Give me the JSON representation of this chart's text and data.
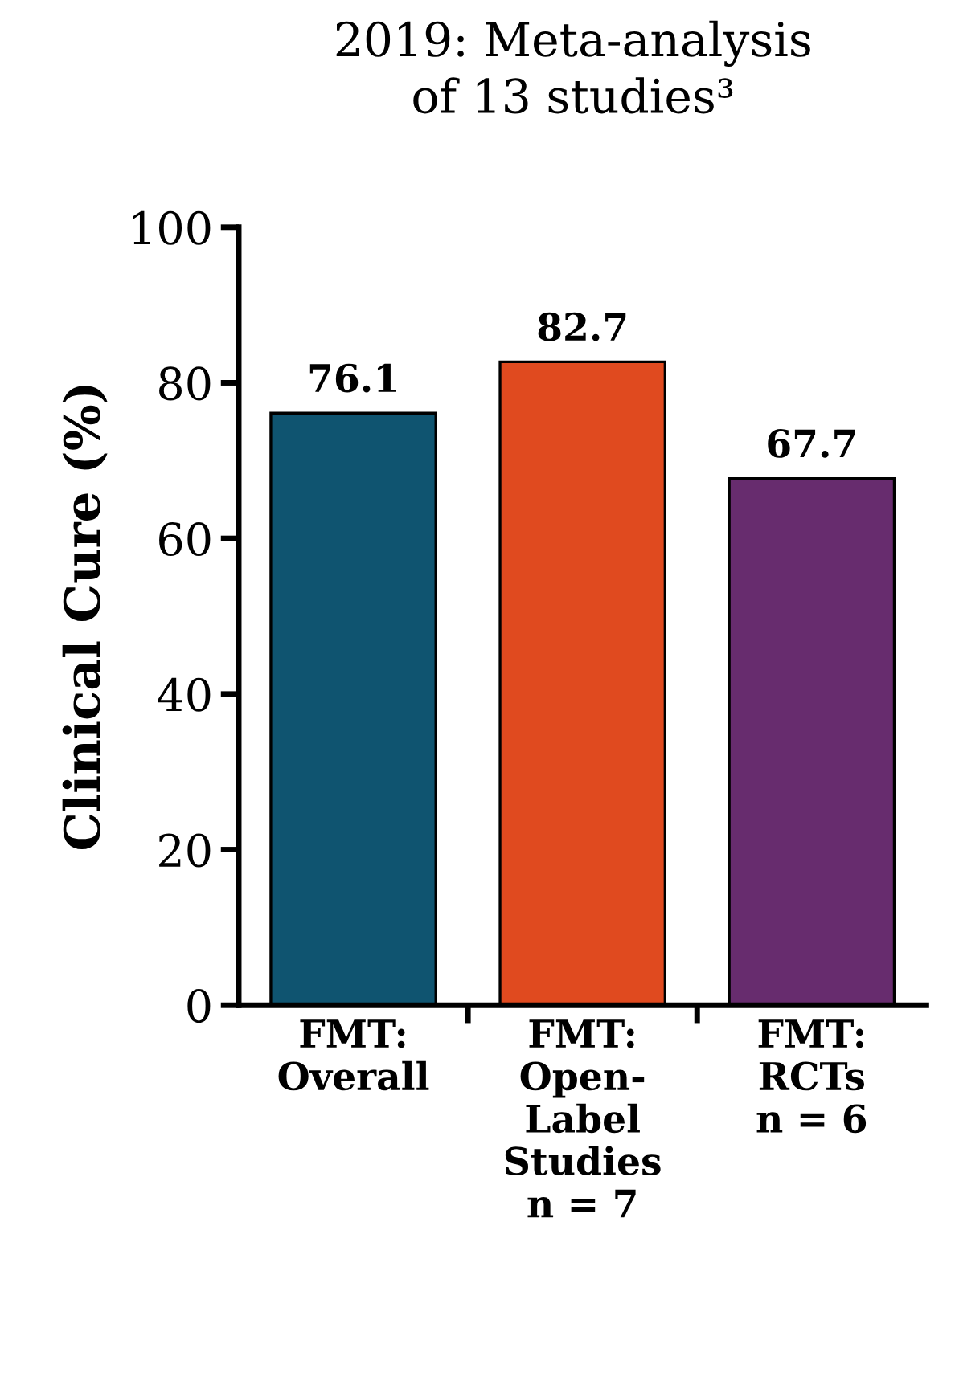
{
  "chart_data": {
    "type": "bar",
    "title": "2019: Meta-analysis\nof 13 studies³",
    "ylabel": "Clinical Cure (%)",
    "categories": [
      "FMT:\nOverall",
      "FMT:\nOpen-\nLabel\nStudies\nn = 7",
      "FMT:\nRCTs\nn = 6"
    ],
    "values": [
      76.1,
      82.7,
      67.7
    ],
    "colors": [
      "#0f5470",
      "#e04a1f",
      "#672c6e"
    ],
    "ylim": [
      0,
      100
    ],
    "yticks": [
      0,
      20,
      40,
      60,
      80,
      100
    ],
    "grid": false,
    "data_labels": true
  }
}
